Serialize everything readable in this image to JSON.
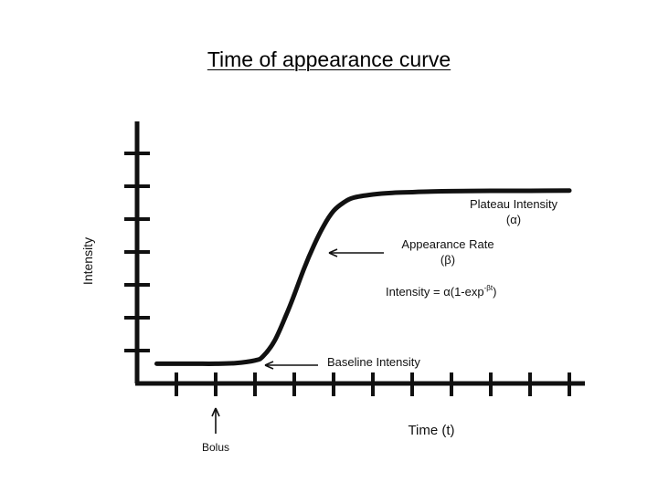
{
  "slide": {
    "title": "Time of appearance curve"
  },
  "chart_data": {
    "type": "line",
    "title": "",
    "xlabel": "Time (t)",
    "ylabel": "Intensity",
    "xlim": [
      0,
      11
    ],
    "ylim": [
      0,
      7
    ],
    "grid": false,
    "legend": "none",
    "x_ticks": [
      1,
      2,
      3,
      4,
      5,
      6,
      7,
      8,
      9,
      10,
      11
    ],
    "y_ticks": [
      1,
      2,
      3,
      4,
      5,
      6,
      7
    ],
    "series": [
      {
        "x": [
          0.5,
          1.0,
          1.5,
          2.0,
          2.5,
          3.0,
          3.2,
          3.5,
          3.8,
          4.0,
          4.25,
          4.5,
          4.75,
          5.0,
          5.25,
          5.5,
          6.0,
          6.5,
          7.0,
          7.5,
          8.0,
          9.0,
          10.0,
          11.0
        ],
        "y": [
          0.6,
          0.6,
          0.6,
          0.6,
          0.62,
          0.7,
          0.82,
          1.3,
          2.1,
          2.7,
          3.5,
          4.2,
          4.8,
          5.25,
          5.5,
          5.65,
          5.75,
          5.8,
          5.82,
          5.84,
          5.85,
          5.86,
          5.86,
          5.87
        ]
      }
    ],
    "annotations": {
      "plateau": {
        "line1": "Plateau Intensity",
        "line2": "(α)"
      },
      "rate": {
        "line1": "Appearance Rate",
        "line2": "(β)"
      },
      "formula": {
        "prefix": "Intensity = α(1-exp",
        "sup": "-βt",
        "suffix": ")"
      },
      "baseline": {
        "label": "Baseline Intensity"
      },
      "bolus": {
        "label": "Bolus",
        "x": 2
      }
    }
  },
  "colors": {
    "ink": "#111111",
    "background": "#ffffff"
  }
}
